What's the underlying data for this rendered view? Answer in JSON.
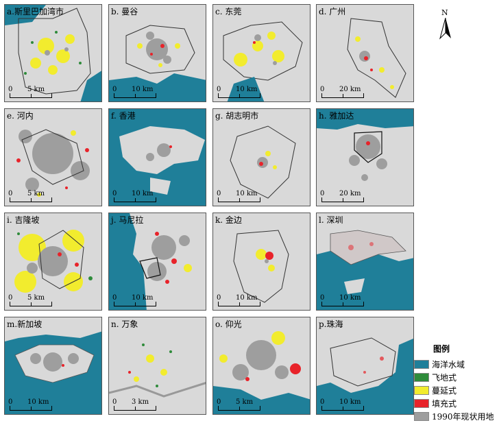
{
  "panels": [
    {
      "title": "a.斯里巴加湾市",
      "scale": [
        "0",
        "5 km"
      ]
    },
    {
      "title": "b. 曼谷",
      "scale": [
        "0",
        "10 km"
      ]
    },
    {
      "title": "c. 东莞",
      "scale": [
        "0",
        "10 km"
      ]
    },
    {
      "title": "d. 广州",
      "scale": [
        "0",
        "20 km"
      ]
    },
    {
      "title": "e. 河内",
      "scale": [
        "0",
        "5 km"
      ]
    },
    {
      "title": "f. 香港",
      "scale": [
        "0",
        "10 km"
      ]
    },
    {
      "title": "g. 胡志明市",
      "scale": [
        "0",
        "10 km"
      ]
    },
    {
      "title": "h. 雅加达",
      "scale": [
        "0",
        "20 km"
      ]
    },
    {
      "title": "i. 吉隆坡",
      "scale": [
        "0",
        "5 km"
      ]
    },
    {
      "title": "j. 马尼拉",
      "scale": [
        "0",
        "10 km"
      ]
    },
    {
      "title": "k. 金边",
      "scale": [
        "0",
        "10 km"
      ]
    },
    {
      "title": "l. 深圳",
      "scale": [
        "0",
        "10 km"
      ]
    },
    {
      "title": "m.新加坡",
      "scale": [
        "0",
        "10 km"
      ]
    },
    {
      "title": "n. 万象",
      "scale": [
        "0",
        "3 km"
      ]
    },
    {
      "title": "o. 仰光",
      "scale": [
        "0",
        "5 km"
      ]
    },
    {
      "title": "p.珠海",
      "scale": [
        "0",
        "10 km"
      ]
    }
  ],
  "north": "N",
  "legend": {
    "title": "图例",
    "items": [
      {
        "label": "海洋水域",
        "color": "#1f7f99"
      },
      {
        "label": "飞地式",
        "color": "#2e8b3a"
      },
      {
        "label": "蔓延式",
        "color": "#f2ec2e"
      },
      {
        "label": "填充式",
        "color": "#e8232a"
      },
      {
        "label": "1990年现状用地",
        "color": "#9e9e9e"
      }
    ]
  }
}
